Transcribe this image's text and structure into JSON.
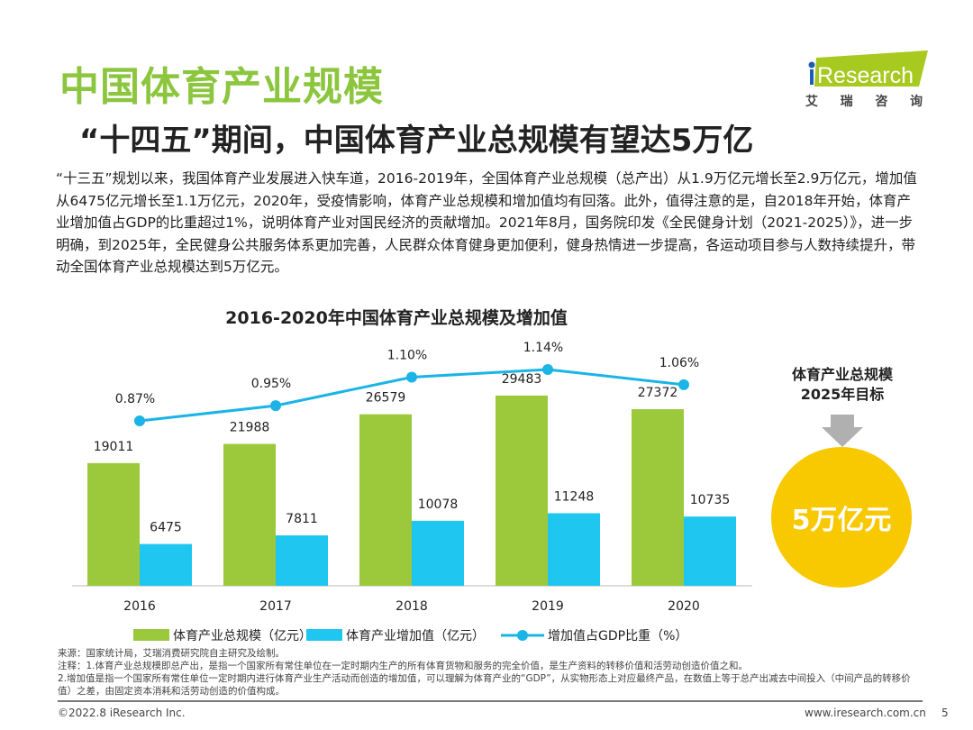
{
  "header": {
    "title": "中国体育产业规模",
    "subtitle": "“十四五”期间，中国体育产业总规模有望达5万亿"
  },
  "logo": {
    "text": "iResearch",
    "chars": [
      "艾",
      "瑞",
      "咨",
      "询"
    ]
  },
  "body_text": "“十三五”规划以来，我国体育产业发展进入快车道，2016-2019年，全国体育产业总规模（总产出）从1.9万亿元增长至2.9万亿元，增加值从6475亿元增长至1.1万亿元，2020年，受疫情影响，体育产业总规模和增加值均有回落。此外，值得注意的是，自2018年开始，体育产业增加值占GDP的比重超过1%，说明体育产业对国民经济的贡献增加。2021年8月，国务院印发《全民健身计划（2021-2025）》，进一步明确，到2025年，全民健身公共服务体系更加完善，人民群众体育健身更加便利，健身热情进一步提高，各运动项目参与人数持续提升，带动全国体育产业总规模达到5万亿元。",
  "chart_data": {
    "type": "bar",
    "title": "2016-2020年中国体育产业总规模及增加值",
    "categories": [
      "2016",
      "2017",
      "2018",
      "2019",
      "2020"
    ],
    "series": [
      {
        "name": "体育产业总规模（亿元）",
        "type": "bar",
        "color": "#9cc83b",
        "values": [
          19011,
          21988,
          26579,
          29483,
          27372
        ]
      },
      {
        "name": "体育产业增加值（亿元）",
        "type": "bar",
        "color": "#1ec6f0",
        "values": [
          6475,
          7811,
          10078,
          11248,
          10735
        ]
      },
      {
        "name": "增加值占GDP比重（%）",
        "type": "line",
        "color": "#1ab4e6",
        "values": [
          0.87,
          0.95,
          1.1,
          1.14,
          1.06
        ],
        "labels": [
          "0.87%",
          "0.95%",
          "1.10%",
          "1.14%",
          "1.06%"
        ]
      }
    ],
    "legend_position": "bottom",
    "grid": false
  },
  "target": {
    "label_line1": "体育产业总规模",
    "label_line2": "2025年目标",
    "value": "5万亿元",
    "color": "#f8c800"
  },
  "notes": [
    "来源：国家统计局，艾瑞消费研究院自主研究及绘制。",
    "注释：1.体育产业总规模即总产出，是指一个国家所有常住单位在一定时期内生产的所有体育货物和服务的完全价值，是生产资料的转移价值和活劳动创造价值之和。",
    "2.增加值是指一个国家所有常住单位一定时期内进行体育产业生产活动而创造的增加值，可以理解为体育产业的“GDP”，从实物形态上对应最终产品，在数值上等于总产出减去中间投入（中间产品的转移价值）之差，由固定资本消耗和活劳动创造的价值构成。"
  ],
  "footer": {
    "copyright": "©2022.8 iResearch Inc.",
    "url": "www.iresearch.com.cn",
    "page": "5"
  }
}
